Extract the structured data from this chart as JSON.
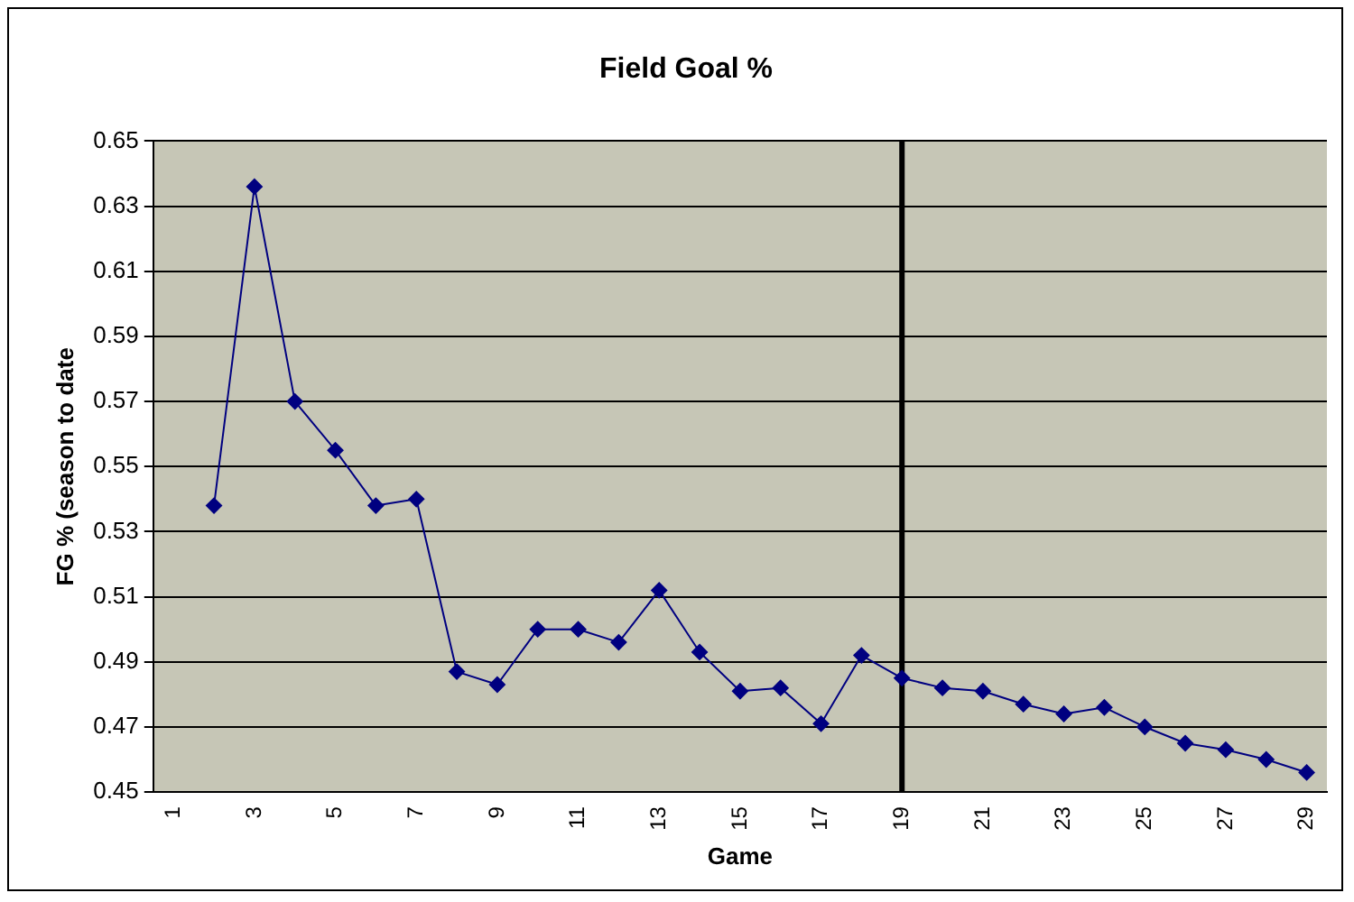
{
  "chart_data": {
    "type": "line",
    "title": "Field Goal %",
    "xlabel": "Game",
    "ylabel": "FG % (season to date",
    "categories": [
      "1",
      null,
      "3",
      null,
      "5",
      null,
      "7",
      null,
      "9",
      null,
      "11",
      null,
      "13",
      null,
      "15",
      null,
      "17",
      null,
      "19",
      null,
      "21",
      null,
      "23",
      null,
      "25",
      null,
      "27",
      null,
      "29"
    ],
    "series": [
      {
        "color": "#000080",
        "values": [
          null,
          0.538,
          0.636,
          0.57,
          0.555,
          0.538,
          0.54,
          0.487,
          0.483,
          0.5,
          0.5,
          0.496,
          0.512,
          0.493,
          0.481,
          0.482,
          0.471,
          0.492,
          0.485,
          0.482,
          0.481,
          0.477,
          0.474,
          0.476,
          0.47,
          0.465,
          0.463,
          0.46,
          0.456
        ]
      }
    ],
    "ylim": [
      0.45,
      0.65
    ],
    "yticks": [
      0.45,
      0.47,
      0.49,
      0.51,
      0.53,
      0.55,
      0.57,
      0.59,
      0.61,
      0.63,
      0.65
    ],
    "grid": "y",
    "legend": false,
    "marker": "diamond",
    "line_style": "solid",
    "ref_lines": [
      {
        "axis": "x",
        "value": "19",
        "color": "#000000"
      }
    ]
  }
}
